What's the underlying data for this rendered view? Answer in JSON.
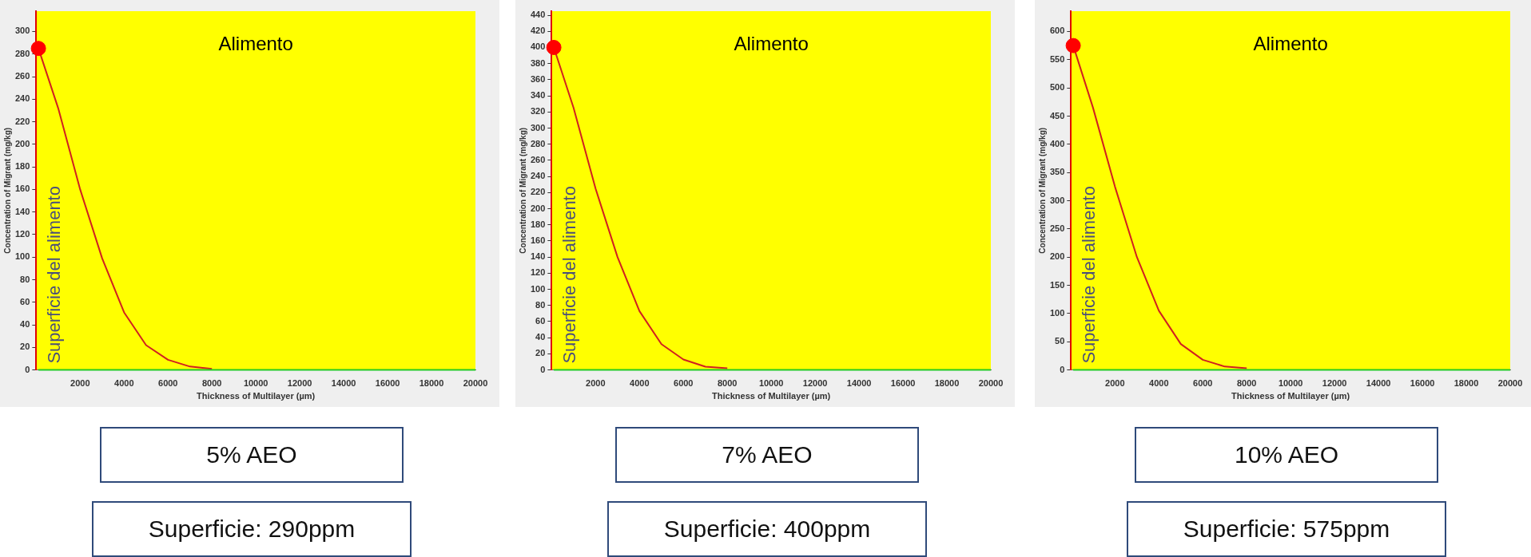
{
  "chart_data": [
    {
      "type": "line",
      "xlabel": "Thickness of Multilayer (µm)",
      "ylabel": "Concentration of Migrant (mg/kg)",
      "xlim": [
        0,
        20000
      ],
      "xticks": [
        2000,
        4000,
        6000,
        8000,
        10000,
        12000,
        14000,
        16000,
        18000,
        20000
      ],
      "ylim": [
        0,
        318
      ],
      "yticks": [
        0,
        20,
        40,
        60,
        80,
        100,
        120,
        140,
        160,
        180,
        200,
        220,
        240,
        260,
        280,
        300
      ],
      "grid": false,
      "legend": false,
      "series": [
        {
          "type": "line",
          "color": "#d02020",
          "x": [
            100,
            1000,
            2000,
            3000,
            4000,
            5000,
            6000,
            7000,
            8000
          ],
          "values": [
            285,
            232,
            160,
            99,
            51,
            22,
            9,
            3,
            1
          ]
        },
        {
          "type": "line",
          "color": "#22cc22",
          "x": [
            100,
            20000
          ],
          "values": [
            0,
            0
          ]
        },
        {
          "type": "scatter",
          "color": "#ff0000",
          "x": [
            100
          ],
          "values": [
            285
          ]
        }
      ],
      "annotations": [
        "Alimento",
        "Superficie del alimento",
        "5% AEO",
        "Superficie: 290ppm"
      ]
    },
    {
      "type": "line",
      "xlabel": "Thickness of Multilayer (µm)",
      "ylabel": "Concentration of Migrant (mg/kg)",
      "xlim": [
        0,
        20000
      ],
      "xticks": [
        2000,
        4000,
        6000,
        8000,
        10000,
        12000,
        14000,
        16000,
        18000,
        20000
      ],
      "ylim": [
        0,
        445
      ],
      "yticks": [
        0,
        20,
        40,
        60,
        80,
        100,
        120,
        140,
        160,
        180,
        200,
        220,
        240,
        260,
        280,
        300,
        320,
        340,
        360,
        380,
        400,
        420,
        440
      ],
      "grid": false,
      "legend": false,
      "series": [
        {
          "type": "line",
          "color": "#d02020",
          "x": [
            100,
            1000,
            2000,
            3000,
            4000,
            5000,
            6000,
            7000,
            8000
          ],
          "values": [
            400,
            325,
            225,
            140,
            73,
            32,
            13,
            4,
            2
          ]
        },
        {
          "type": "line",
          "color": "#22cc22",
          "x": [
            100,
            20000
          ],
          "values": [
            0,
            0
          ]
        },
        {
          "type": "scatter",
          "color": "#ff0000",
          "x": [
            100
          ],
          "values": [
            400
          ]
        }
      ],
      "annotations": [
        "Alimento",
        "Superficie del alimento",
        "7% AEO",
        "Superficie: 400ppm"
      ]
    },
    {
      "type": "line",
      "xlabel": "Thickness of Multilayer (µm)",
      "ylabel": "Concentration of Migrant (mg/kg)",
      "xlim": [
        0,
        20000
      ],
      "xticks": [
        2000,
        4000,
        6000,
        8000,
        10000,
        12000,
        14000,
        16000,
        18000,
        20000
      ],
      "ylim": [
        0,
        636
      ],
      "yticks": [
        0,
        50,
        100,
        150,
        200,
        250,
        300,
        350,
        400,
        450,
        500,
        550,
        600
      ],
      "grid": false,
      "legend": false,
      "series": [
        {
          "type": "line",
          "color": "#d02020",
          "x": [
            100,
            1000,
            2000,
            3000,
            4000,
            5000,
            6000,
            7000,
            8000
          ],
          "values": [
            575,
            465,
            325,
            200,
            105,
            46,
            18,
            6,
            3
          ]
        },
        {
          "type": "line",
          "color": "#22cc22",
          "x": [
            100,
            20000
          ],
          "values": [
            0,
            0
          ]
        },
        {
          "type": "scatter",
          "color": "#ff0000",
          "x": [
            100
          ],
          "values": [
            575
          ]
        }
      ],
      "annotations": [
        "Alimento",
        "Superficie del alimento",
        "10% AEO",
        "Superficie: 575ppm"
      ]
    }
  ]
}
